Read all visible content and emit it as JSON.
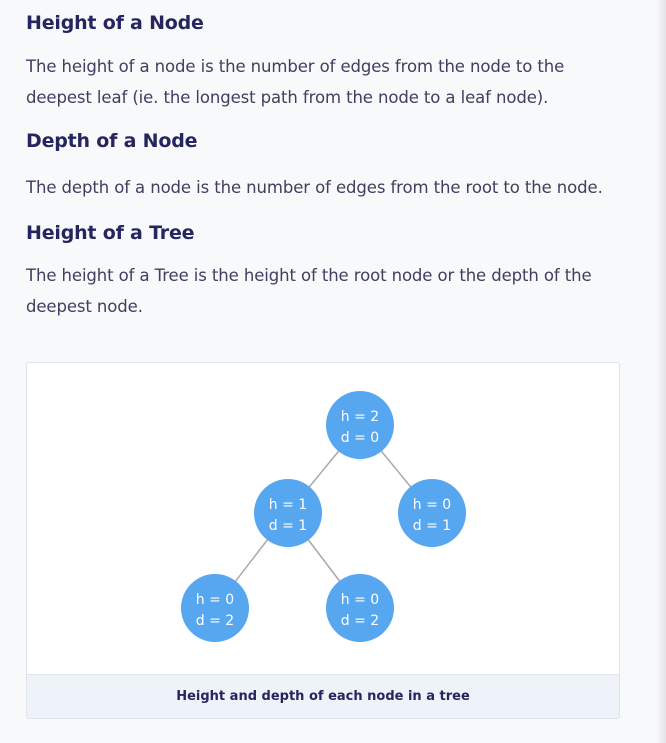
{
  "sections": [
    {
      "heading": "Height of a Node",
      "text": "The height of a node is the number of edges from the node to the deepest leaf (ie. the longest path from the node to a leaf node)."
    },
    {
      "heading": "Depth of a Node",
      "text": "The depth of a node is the number of edges from the root to the node."
    },
    {
      "heading": "Height of a Tree",
      "text": "The height of a Tree is the height of the root node or the depth of the deepest node."
    }
  ],
  "figure": {
    "caption": "Height and depth of each node in a tree",
    "colors": {
      "node_fill": "#56a6f0",
      "edge": "#a9a9a9"
    },
    "nodes": [
      {
        "id": "root",
        "h_label": "h = 2",
        "d_label": "d = 0"
      },
      {
        "id": "left",
        "h_label": "h = 1",
        "d_label": "d = 1"
      },
      {
        "id": "right",
        "h_label": "h = 0",
        "d_label": "d = 1"
      },
      {
        "id": "left-left",
        "h_label": "h = 0",
        "d_label": "d = 2"
      },
      {
        "id": "left-right",
        "h_label": "h = 0",
        "d_label": "d = 2"
      }
    ],
    "edges": [
      [
        "root",
        "left"
      ],
      [
        "root",
        "right"
      ],
      [
        "left",
        "left-left"
      ],
      [
        "left",
        "left-right"
      ]
    ]
  }
}
